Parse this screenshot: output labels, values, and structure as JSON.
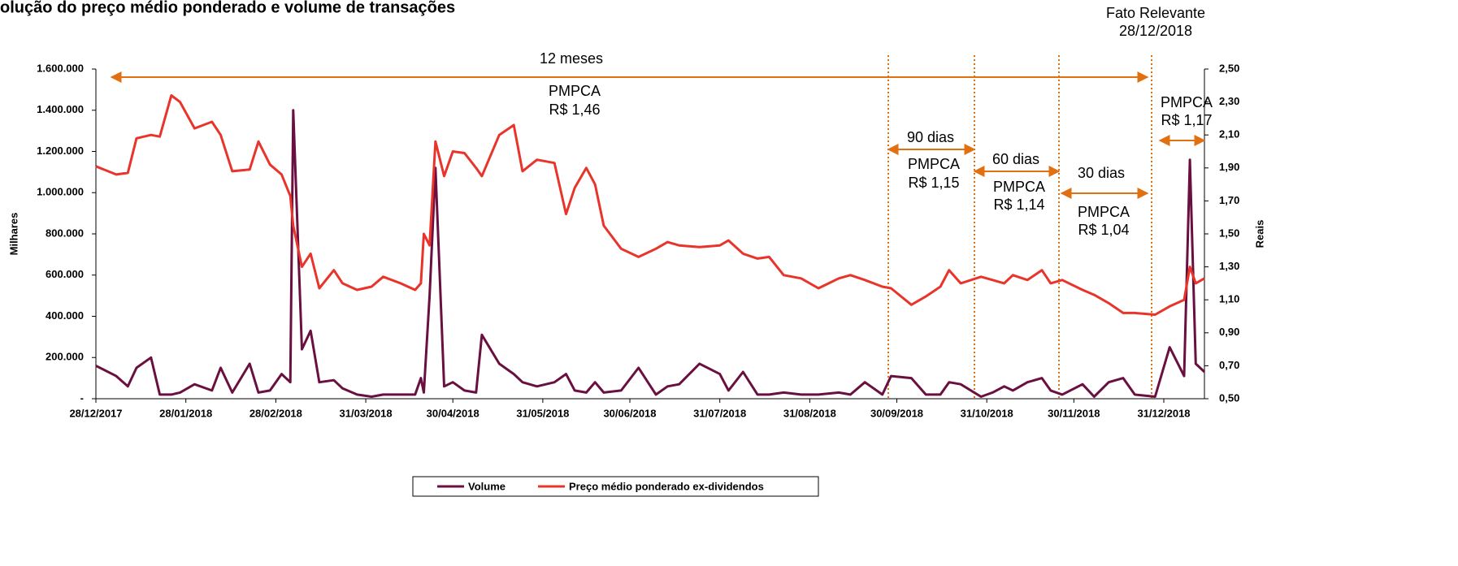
{
  "chart_data": {
    "type": "line",
    "title": "olução do preço médio ponderado e volume de transações",
    "ylabel": "Milhares",
    "y2label": "Reais",
    "annotations": [
      "12 meses",
      "PMPCA",
      "R$ 1,46",
      "90 dias",
      "PMPCA",
      "R$ 1,15",
      "60 dias",
      "PMPCA",
      "R$ 1,14",
      "30 dias",
      "PMPCA",
      "R$ 1,04",
      "PMPCA",
      "R$ 1,17",
      "Fato Relevante",
      "28/12/2018"
    ],
    "x": [
      "28/12/2017",
      "04/01/2018",
      "08/01/2018",
      "11/01/2018",
      "16/01/2018",
      "19/01/2018",
      "23/01/2018",
      "26/01/2018",
      "31/01/2018",
      "06/02/2018",
      "09/02/2018",
      "13/02/2018",
      "19/02/2018",
      "22/02/2018",
      "26/02/2018",
      "02/03/2018",
      "05/03/2018",
      "06/03/2018",
      "09/03/2018",
      "12/03/2018",
      "15/03/2018",
      "20/03/2018",
      "23/03/2018",
      "28/03/2018",
      "02/04/2018",
      "06/04/2018",
      "12/04/2018",
      "17/04/2018",
      "19/04/2018",
      "20/04/2018",
      "22/04/2018",
      "24/04/2018",
      "27/04/2018",
      "30/04/2018",
      "04/05/2018",
      "08/05/2018",
      "10/05/2018",
      "16/05/2018",
      "21/05/2018",
      "24/05/2018",
      "29/05/2018",
      "04/06/2018",
      "08/06/2018",
      "11/06/2018",
      "15/06/2018",
      "18/06/2018",
      "21/06/2018",
      "27/06/2018",
      "03/07/2018",
      "09/07/2018",
      "13/07/2018",
      "17/07/2018",
      "24/07/2018",
      "31/07/2018",
      "03/08/2018",
      "08/08/2018",
      "13/08/2018",
      "17/08/2018",
      "22/08/2018",
      "28/08/2018",
      "03/09/2018",
      "10/09/2018",
      "14/09/2018",
      "19/09/2018",
      "25/09/2018",
      "28/09/2018",
      "05/10/2018",
      "10/10/2018",
      "15/10/2018",
      "18/10/2018",
      "22/10/2018",
      "29/10/2018",
      "02/11/2018",
      "06/11/2018",
      "09/11/2018",
      "14/11/2018",
      "19/11/2018",
      "22/11/2018",
      "26/11/2018",
      "03/12/2018",
      "07/12/2018",
      "12/12/2018",
      "17/12/2018",
      "21/12/2018",
      "28/12/2018",
      "02/01/2019",
      "07/01/2019",
      "09/01/2019",
      "11/01/2019",
      "14/01/2019"
    ],
    "series": [
      {
        "name": "Volume",
        "color": "#6a1040",
        "values": [
          160000,
          110000,
          60000,
          150000,
          200000,
          20000,
          20000,
          30000,
          70000,
          40000,
          150000,
          30000,
          170000,
          30000,
          40000,
          120000,
          80000,
          1400000,
          240000,
          330000,
          80000,
          90000,
          50000,
          20000,
          10000,
          20000,
          20000,
          20000,
          100000,
          30000,
          500000,
          1120000,
          60000,
          80000,
          40000,
          30000,
          310000,
          170000,
          120000,
          80000,
          60000,
          80000,
          120000,
          40000,
          30000,
          80000,
          30000,
          40000,
          150000,
          20000,
          60000,
          70000,
          170000,
          120000,
          40000,
          130000,
          20000,
          20000,
          30000,
          20000,
          20000,
          30000,
          20000,
          80000,
          20000,
          110000,
          100000,
          20000,
          20000,
          80000,
          70000,
          10000,
          30000,
          60000,
          40000,
          80000,
          100000,
          40000,
          20000,
          70000,
          10000,
          80000,
          100000,
          20000,
          10000,
          250000,
          110000,
          1160000,
          170000,
          130000
        ]
      },
      {
        "name": "Preço médio ponderado ex-dividendos",
        "color": "#e8342a",
        "axis": "y2",
        "values": [
          1.91,
          1.86,
          1.87,
          2.08,
          2.1,
          2.09,
          2.34,
          2.3,
          2.14,
          2.18,
          2.1,
          1.88,
          1.89,
          2.06,
          1.92,
          1.86,
          1.73,
          1.55,
          1.3,
          1.38,
          1.17,
          1.28,
          1.2,
          1.16,
          1.18,
          1.24,
          1.2,
          1.16,
          1.2,
          1.5,
          1.43,
          2.06,
          1.85,
          2.0,
          1.99,
          1.9,
          1.85,
          2.1,
          2.16,
          1.88,
          1.95,
          1.93,
          1.62,
          1.78,
          1.9,
          1.8,
          1.55,
          1.41,
          1.36,
          1.41,
          1.45,
          1.43,
          1.42,
          1.43,
          1.46,
          1.38,
          1.35,
          1.36,
          1.25,
          1.23,
          1.17,
          1.23,
          1.25,
          1.22,
          1.18,
          1.17,
          1.07,
          1.12,
          1.18,
          1.28,
          1.2,
          1.24,
          1.22,
          1.2,
          1.25,
          1.22,
          1.28,
          1.2,
          1.22,
          1.16,
          1.13,
          1.08,
          1.02,
          1.02,
          1.01,
          1.06,
          1.1,
          1.3,
          1.2,
          1.23
        ]
      }
    ],
    "xlim": [
      "28/12/2017",
      "14/01/2019"
    ],
    "xticks": [
      "28/12/2017",
      "28/01/2018",
      "28/02/2018",
      "31/03/2018",
      "30/04/2018",
      "31/05/2018",
      "30/06/2018",
      "31/07/2018",
      "31/08/2018",
      "30/09/2018",
      "31/10/2018",
      "30/11/2018",
      "31/12/2018"
    ],
    "ylim": [
      0,
      1600000
    ],
    "yticks": [
      {
        "value": 0,
        "label": "-"
      },
      {
        "value": 200000,
        "label": "200.000"
      },
      {
        "value": 400000,
        "label": "400.000"
      },
      {
        "value": 600000,
        "label": "600.000"
      },
      {
        "value": 800000,
        "label": "800.000"
      },
      {
        "value": 1000000,
        "label": "1.000.000"
      },
      {
        "value": 1200000,
        "label": "1.200.000"
      },
      {
        "value": 1400000,
        "label": "1.400.000"
      },
      {
        "value": 1600000,
        "label": "1.600.000"
      }
    ],
    "y2lim": [
      0.5,
      2.5
    ],
    "y2ticks": [
      {
        "value": 0.5,
        "label": "0,50"
      },
      {
        "value": 0.7,
        "label": "0,70"
      },
      {
        "value": 0.9,
        "label": "0,90"
      },
      {
        "value": 1.1,
        "label": "1,10"
      },
      {
        "value": 1.3,
        "label": "1,30"
      },
      {
        "value": 1.5,
        "label": "1,50"
      },
      {
        "value": 1.7,
        "label": "1,70"
      },
      {
        "value": 1.9,
        "label": "1,90"
      },
      {
        "value": 2.1,
        "label": "2,10"
      },
      {
        "value": 2.3,
        "label": "2,30"
      },
      {
        "value": 2.5,
        "label": "2,50"
      }
    ],
    "grid": false,
    "legend": "bottom"
  }
}
